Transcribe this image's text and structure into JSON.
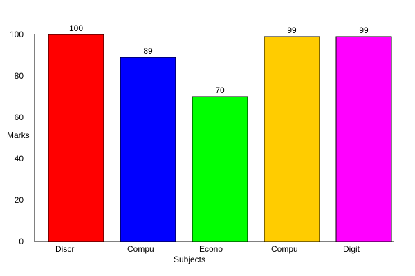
{
  "chart_data": {
    "type": "bar",
    "title": "",
    "xlabel": "Subjects",
    "ylabel": "Marks",
    "ylim": [
      0,
      100
    ],
    "yticks": [
      0,
      20,
      40,
      60,
      80,
      100
    ],
    "grid": false,
    "legend": "none",
    "categories": [
      "Discr",
      "Compu",
      "Econo",
      "Compu",
      "Digit"
    ],
    "values": [
      100,
      89,
      70,
      99,
      99
    ],
    "colors": [
      "#ff0000",
      "#0000ff",
      "#00ff00",
      "#ffcc00",
      "#ff00ff"
    ]
  }
}
